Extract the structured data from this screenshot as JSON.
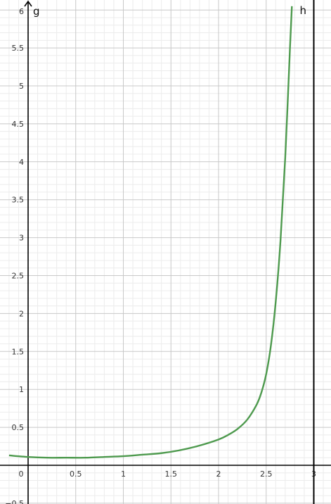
{
  "chart_data": {
    "type": "line",
    "x_range": [
      -0.2,
      3.2
    ],
    "y_range": [
      -0.5,
      6.05
    ],
    "x_ticks": [
      0,
      0.5,
      1,
      1.5,
      2,
      2.5,
      3
    ],
    "x_tick_labels": [
      "0",
      "0.5",
      "1",
      "1.5",
      "2",
      "2.5",
      "3"
    ],
    "y_ticks": [
      0.5,
      1,
      1.5,
      2,
      2.5,
      3,
      3.5,
      4,
      4.5,
      5,
      5.5,
      6
    ],
    "y_tick_labels": [
      "0.5",
      "1",
      "1.5",
      "2",
      "2.5",
      "3",
      "3.5",
      "4",
      "4.5",
      "5",
      "5.5",
      "6"
    ],
    "y_bottom_tick_label": "−0.5",
    "grid": true,
    "minor_grid_step": 0.1,
    "series": [
      {
        "name": "g",
        "color": "#4e9a4e",
        "points": [
          [
            -0.2,
            0.13
          ],
          [
            0,
            0.11
          ],
          [
            0.2,
            0.1
          ],
          [
            0.4,
            0.1
          ],
          [
            0.6,
            0.1
          ],
          [
            0.8,
            0.11
          ],
          [
            1.0,
            0.12
          ],
          [
            1.2,
            0.14
          ],
          [
            1.4,
            0.16
          ],
          [
            1.6,
            0.2
          ],
          [
            1.8,
            0.26
          ],
          [
            2.0,
            0.34
          ],
          [
            2.1,
            0.4
          ],
          [
            2.2,
            0.48
          ],
          [
            2.3,
            0.6
          ],
          [
            2.4,
            0.8
          ],
          [
            2.45,
            0.96
          ],
          [
            2.5,
            1.2
          ],
          [
            2.55,
            1.58
          ],
          [
            2.6,
            2.15
          ],
          [
            2.65,
            2.95
          ],
          [
            2.7,
            4.05
          ],
          [
            2.75,
            5.5
          ],
          [
            2.77,
            6.05
          ]
        ]
      }
    ],
    "vertical_line": {
      "name": "h",
      "x": 3
    }
  }
}
